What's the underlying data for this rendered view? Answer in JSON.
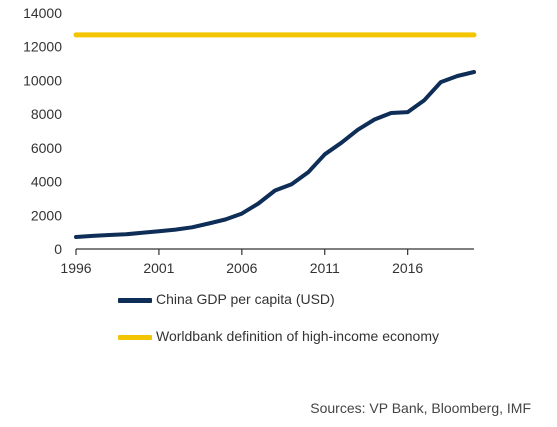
{
  "chart_data": {
    "type": "line",
    "title": "",
    "xlabel": "",
    "ylabel": "",
    "xlim": [
      1996,
      2020
    ],
    "ylim": [
      0,
      14000
    ],
    "x_ticks": [
      "1996",
      "2001",
      "2006",
      "2011",
      "2016"
    ],
    "y_ticks": [
      "0",
      "2000",
      "4000",
      "6000",
      "8000",
      "10000",
      "12000",
      "14000"
    ],
    "grid": false,
    "legend_position": "bottom-left",
    "series": [
      {
        "name": "China GDP per capita (USD)",
        "color": "#0e2d57",
        "x": [
          1996,
          1997,
          1998,
          1999,
          2000,
          2001,
          2002,
          2003,
          2004,
          2005,
          2006,
          2007,
          2008,
          2009,
          2010,
          2011,
          2012,
          2013,
          2014,
          2015,
          2016,
          2017,
          2018,
          2019,
          2020
        ],
        "y": [
          710,
          780,
          830,
          870,
          960,
          1050,
          1150,
          1290,
          1510,
          1750,
          2100,
          2700,
          3470,
          3840,
          4550,
          5620,
          6300,
          7080,
          7680,
          8070,
          8120,
          8830,
          9900,
          10260,
          10500
        ]
      },
      {
        "name": "Worldbank definition of high-income economy",
        "color": "#f2c500",
        "x": [
          1996,
          2020
        ],
        "y": [
          12700,
          12700
        ]
      }
    ]
  },
  "source_text": "Sources: VP Bank, Bloomberg, IMF"
}
